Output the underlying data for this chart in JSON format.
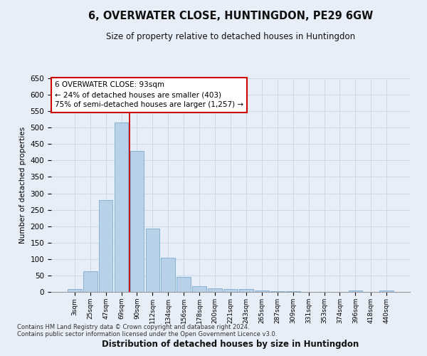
{
  "title": "6, OVERWATER CLOSE, HUNTINGDON, PE29 6GW",
  "subtitle": "Size of property relative to detached houses in Huntingdon",
  "xlabel": "Distribution of detached houses by size in Huntingdon",
  "ylabel": "Number of detached properties",
  "footnote1": "Contains HM Land Registry data © Crown copyright and database right 2024.",
  "footnote2": "Contains public sector information licensed under the Open Government Licence v3.0.",
  "bin_labels": [
    "3sqm",
    "25sqm",
    "47sqm",
    "69sqm",
    "90sqm",
    "112sqm",
    "134sqm",
    "156sqm",
    "178sqm",
    "200sqm",
    "221sqm",
    "243sqm",
    "265sqm",
    "287sqm",
    "309sqm",
    "331sqm",
    "353sqm",
    "374sqm",
    "396sqm",
    "418sqm",
    "440sqm"
  ],
  "bar_values": [
    8,
    63,
    280,
    515,
    430,
    192,
    103,
    46,
    18,
    11,
    8,
    8,
    4,
    2,
    2,
    1,
    0,
    0,
    4,
    0,
    4
  ],
  "bar_color": "#b8d0e8",
  "bar_edge_color": "#7aabcf",
  "vline_x_index": 3.5,
  "vline_color": "#cc0000",
  "annotation_text": "6 OVERWATER CLOSE: 93sqm\n← 24% of detached houses are smaller (403)\n75% of semi-detached houses are larger (1,257) →",
  "annotation_box_color": "#ffffff",
  "annotation_box_edge": "#cc0000",
  "ylim": [
    0,
    650
  ],
  "yticks": [
    0,
    50,
    100,
    150,
    200,
    250,
    300,
    350,
    400,
    450,
    500,
    550,
    600,
    650
  ],
  "grid_color": "#cdd8ea",
  "background_color": "#e8eef8"
}
